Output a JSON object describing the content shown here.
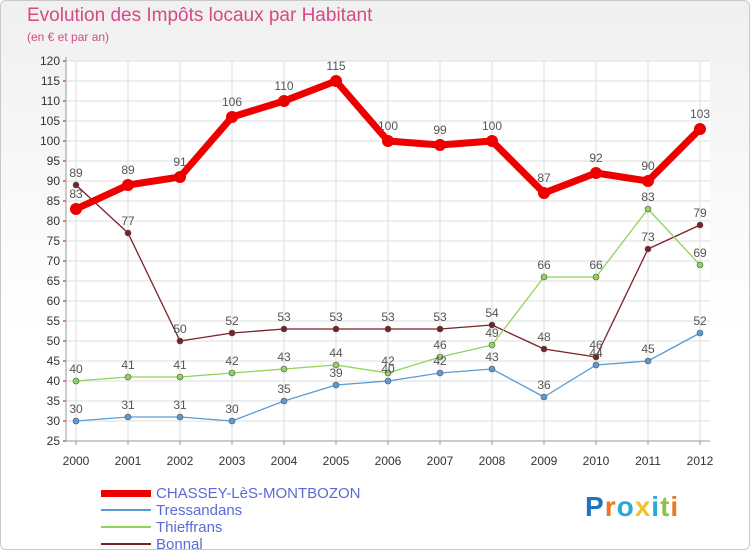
{
  "header": {
    "title": "Evolution des Impôts locaux par Habitant",
    "subtitle": "(en € et par an)"
  },
  "logo": {
    "text": "Proxiti",
    "colors": [
      "#1e73be",
      "#e9791c",
      "#2aa7df",
      "#f2c12e",
      "#2aa7df",
      "#8bc34a",
      "#e9791c"
    ]
  },
  "chart_data": {
    "type": "line",
    "title": "Evolution des Impôts locaux par Habitant",
    "subtitle": "(en € et par an)",
    "x": [
      "2000",
      "2001",
      "2002",
      "2003",
      "2004",
      "2005",
      "2006",
      "2007",
      "2008",
      "2009",
      "2010",
      "2011",
      "2012"
    ],
    "ylim": [
      25,
      120
    ],
    "yticks": [
      25,
      30,
      35,
      40,
      45,
      50,
      55,
      60,
      65,
      70,
      75,
      80,
      85,
      90,
      95,
      100,
      105,
      110,
      115,
      120
    ],
    "grid": true,
    "legend_position": "bottom-left",
    "series": [
      {
        "name": "CHASSEY-LèS-MONTBOZON",
        "color": "#ee0000",
        "values": [
          83,
          89,
          91,
          106,
          110,
          115,
          100,
          99,
          100,
          87,
          92,
          90,
          103
        ]
      },
      {
        "name": "Tressandans",
        "color": "#5b9bd5",
        "values": [
          30,
          31,
          31,
          30,
          35,
          39,
          40,
          42,
          43,
          36,
          44,
          45,
          52
        ]
      },
      {
        "name": "Thieffrans",
        "color": "#8fd45a",
        "values": [
          40,
          41,
          41,
          42,
          43,
          44,
          42,
          46,
          49,
          66,
          66,
          83,
          69
        ]
      },
      {
        "name": "Bonnal",
        "color": "#7b2025",
        "values": [
          89,
          77,
          50,
          52,
          53,
          53,
          53,
          53,
          54,
          48,
          46,
          73,
          79
        ]
      }
    ]
  }
}
